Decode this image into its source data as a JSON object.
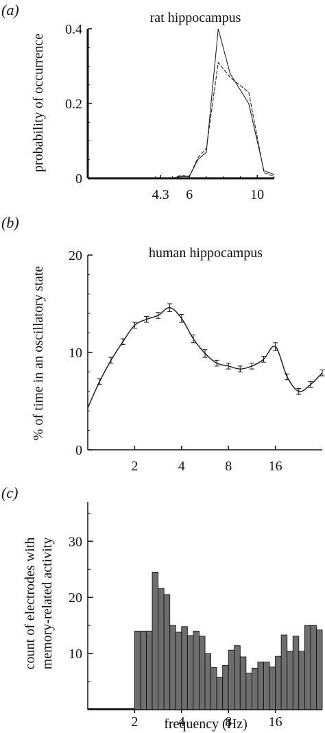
{
  "chart_data": [
    {
      "panel": "(a)",
      "type": "line",
      "title": "rat hippocampus",
      "ylabel": "probability of occurrence",
      "xlabel": "",
      "yticks": [
        "0",
        "0.2",
        "0.4"
      ],
      "ylim": [
        0,
        0.4
      ],
      "xticks": [
        "4.3",
        "6",
        "10"
      ],
      "xlim": [
        0,
        14
      ],
      "x_scale": "linear",
      "series": [
        {
          "x": [
            4.3,
            5.0,
            5.5,
            6.0,
            6.5,
            7.0,
            7.7,
            8.4,
            9.5,
            10.4,
            11.0
          ],
          "values": [
            0.0,
            0.0,
            0.005,
            0.005,
            0.05,
            0.07,
            0.4,
            0.28,
            0.2,
            0.02,
            0.01
          ]
        },
        {
          "x": [
            4.3,
            5.0,
            5.5,
            6.0,
            6.5,
            7.0,
            7.7,
            8.4,
            9.5,
            10.4,
            11.0
          ],
          "values": [
            0.0,
            0.0,
            0.008,
            0.005,
            0.055,
            0.08,
            0.31,
            0.27,
            0.23,
            0.015,
            0.005
          ]
        }
      ]
    },
    {
      "panel": "(b)",
      "type": "line",
      "title": "human hippocampus",
      "ylabel": "% of time in an oscillatory state",
      "xlabel": "",
      "yticks": [
        "0",
        "10",
        "20"
      ],
      "ylim": [
        0,
        20
      ],
      "xticks": [
        "2",
        "4",
        "8",
        "16"
      ],
      "x_scale": "log2",
      "xlim": [
        1,
        32
      ],
      "series": [
        {
          "x": [
            1.0,
            1.19,
            1.41,
            1.68,
            2.0,
            2.38,
            2.83,
            3.36,
            4.0,
            4.76,
            5.66,
            6.73,
            8.0,
            9.51,
            11.31,
            13.45,
            16.0,
            19.03,
            22.63,
            26.91,
            32.0
          ],
          "values": [
            4.3,
            7.0,
            9.2,
            11.1,
            12.8,
            13.4,
            13.8,
            14.6,
            13.5,
            11.4,
            9.9,
            8.9,
            8.6,
            8.3,
            8.6,
            9.3,
            10.6,
            7.5,
            6.0,
            6.7,
            7.9
          ],
          "errors": [
            0,
            0.3,
            0.3,
            0.3,
            0.3,
            0.3,
            0.3,
            0.4,
            0.4,
            0.4,
            0.4,
            0.3,
            0.3,
            0.3,
            0.3,
            0.3,
            0.4,
            0.3,
            0.3,
            0.3,
            0.3
          ]
        }
      ]
    },
    {
      "panel": "(c)",
      "type": "bar",
      "title": "",
      "ylabel_lines": [
        "count of electrodes with",
        "memory-related activity"
      ],
      "xlabel": "frequency (Hz)",
      "yticks": [
        "10",
        "20",
        "30"
      ],
      "ylim": [
        0,
        37
      ],
      "xticks": [
        "2",
        "4",
        "8",
        "16"
      ],
      "x_scale": "log2",
      "xlim": [
        1,
        32
      ],
      "zero_line_x": [
        1.0,
        2.0
      ],
      "bin_x_start": 2.0,
      "values": [
        14,
        14,
        14,
        24.5,
        21.6,
        20.5,
        15,
        13.8,
        14.8,
        13.2,
        14,
        13.1,
        10,
        7.5,
        5.8,
        7.9,
        10.6,
        11.4,
        9.4,
        6.5,
        7.4,
        8.5,
        8.5,
        7.6,
        9.5,
        13.3,
        10.4,
        13.1,
        10.4,
        15.0,
        15.0,
        14.2
      ]
    }
  ]
}
